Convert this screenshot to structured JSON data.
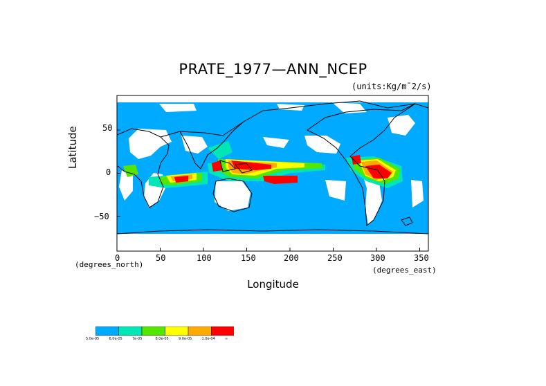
{
  "map": {
    "title": "PRATE_1977—ANN_NCEP",
    "units_label": "(units:Kg/m¯2/s)",
    "ylabel": "Latitude",
    "xlabel": "Longitude",
    "y_unit_note": "(degrees_north)",
    "x_unit_note": "(degrees_east)",
    "y_ticks": [
      "50",
      "0",
      "−50"
    ],
    "x_ticks": [
      "0",
      "50",
      "100",
      "150",
      "200",
      "250",
      "300",
      "350"
    ]
  },
  "chart_data": {
    "type": "heatmap",
    "title": "PRATE_1977—ANN_NCEP",
    "xlabel": "Longitude",
    "ylabel": "Latitude",
    "xlim": [
      0,
      360
    ],
    "ylim": [
      -90,
      90
    ],
    "x_ticks": [
      0,
      50,
      100,
      150,
      200,
      250,
      300,
      350
    ],
    "y_ticks": [
      50,
      0,
      -50
    ],
    "legend": {
      "placement": "bottom-left",
      "labels": [
        "5.0e-05",
        "6.0e-05",
        "7e-05",
        "8.0e-05",
        "9.0e-05",
        "1.0e-04",
        "∞"
      ],
      "colors": [
        "#00aaff",
        "#00e6b4",
        "#55e600",
        "#ffff00",
        "#ffaa00",
        "#ff0000"
      ]
    },
    "heavy_regions": [
      {
        "lon": [
          130,
          195
        ],
        "lat": [
          0,
          12
        ],
        "level": "red"
      },
      {
        "lon": [
          165,
          200
        ],
        "lat": [
          -10,
          0
        ],
        "level": "red"
      },
      {
        "lon": [
          295,
          325
        ],
        "lat": [
          -12,
          2
        ],
        "level": "red"
      },
      {
        "lon": [
          65,
          80
        ],
        "lat": [
          -10,
          -6
        ],
        "level": "red"
      },
      {
        "lon": [
          110,
          125
        ],
        "lat": [
          -5,
          5
        ],
        "level": "red"
      }
    ]
  }
}
